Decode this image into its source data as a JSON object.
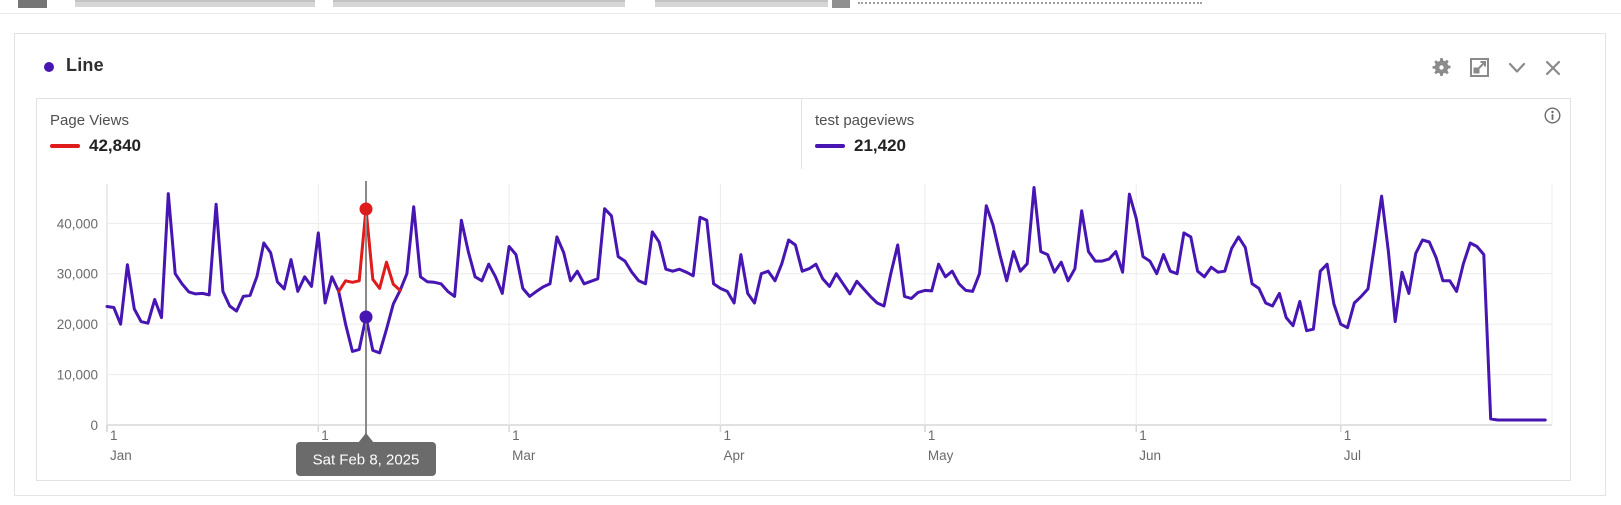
{
  "panel": {
    "title": "Line",
    "accent_color": "#4715b2",
    "toolbar_icon_color": "#8a8a8a",
    "toolbar_icons": [
      "settings-gear",
      "expand",
      "chevron-down",
      "close"
    ]
  },
  "legend": {
    "items": [
      {
        "label": "Page Views",
        "value": "42,840",
        "color": "#df1b1b"
      },
      {
        "label": "test pageviews",
        "value": "21,420",
        "color": "#4715b2"
      }
    ]
  },
  "info_icon": "i",
  "chart_data": {
    "type": "line",
    "x_unit": "day offset from Jan 1, 2025",
    "ylim": [
      0,
      48000
    ],
    "grid": true,
    "y_ticks": [
      {
        "v": 0,
        "label": "0"
      },
      {
        "v": 10000,
        "label": "10,000"
      },
      {
        "v": 20000,
        "label": "20,000"
      },
      {
        "v": 30000,
        "label": "30,000"
      },
      {
        "v": 40000,
        "label": "40,000"
      }
    ],
    "months": [
      {
        "day": 0,
        "tick": "1",
        "label": "Jan"
      },
      {
        "day": 31,
        "tick": "1",
        "label": "Feb"
      },
      {
        "day": 59,
        "tick": "1",
        "label": "Mar"
      },
      {
        "day": 90,
        "tick": "1",
        "label": "Apr"
      },
      {
        "day": 120,
        "tick": "1",
        "label": "May"
      },
      {
        "day": 151,
        "tick": "1",
        "label": "Jun"
      },
      {
        "day": 181,
        "tick": "1",
        "label": "Jul"
      }
    ],
    "right_edge_day": 212,
    "axis_color": "#d7d7d7",
    "grid_color": "#ececec",
    "tick_label_color": "#6b6b6b",
    "series": [
      {
        "name": "test pageviews",
        "color": "#4715b2",
        "start_day": 0,
        "values": [
          23500,
          23300,
          20000,
          31800,
          23000,
          20500,
          20200,
          24900,
          21300,
          45900,
          30000,
          28000,
          26400,
          26000,
          26100,
          25800,
          43800,
          26500,
          23600,
          22600,
          25500,
          25700,
          29500,
          36100,
          34200,
          28400,
          27000,
          32800,
          26500,
          29400,
          27500,
          38100,
          24200,
          29400,
          26500,
          20000,
          14600,
          15000,
          21420,
          14800,
          14300,
          19000,
          24000,
          26700,
          30000,
          43300,
          29400,
          28400,
          28300,
          28000,
          26500,
          25500,
          40600,
          34400,
          29400,
          28600,
          31900,
          29400,
          26100,
          35400,
          33800,
          27100,
          25500,
          26500,
          27400,
          28000,
          37300,
          34200,
          28600,
          30500,
          28000,
          28500,
          29000,
          42900,
          41500,
          33400,
          32500,
          30300,
          28600,
          28000,
          38300,
          36300,
          30900,
          30500,
          30900,
          30300,
          29600,
          41200,
          40600,
          28000,
          27100,
          26500,
          24200,
          33800,
          26100,
          24200,
          30000,
          30500,
          28600,
          32000,
          36700,
          35700,
          30500,
          31000,
          31900,
          29000,
          27500,
          30000,
          28000,
          26000,
          28500,
          27000,
          25500,
          24200,
          23600,
          30000,
          35700,
          25500,
          25100,
          26300,
          26700,
          26600,
          31900,
          29400,
          30500,
          28000,
          26700,
          26500,
          30000,
          43500,
          39600,
          33800,
          28600,
          34400,
          30500,
          32000,
          47100,
          34400,
          33800,
          30300,
          32300,
          28600,
          31000,
          42500,
          34400,
          32500,
          32500,
          32900,
          34400,
          30300,
          45800,
          41000,
          33400,
          32500,
          30000,
          33800,
          30500,
          30000,
          38100,
          37300,
          30500,
          29400,
          31300,
          30300,
          30500,
          35000,
          37300,
          35200,
          28000,
          27100,
          24200,
          23600,
          26100,
          21300,
          19700,
          24500,
          18700,
          19000,
          30500,
          31900,
          24000,
          20000,
          19300,
          24200,
          25500,
          27000,
          36000,
          45400,
          34400,
          20500,
          30300,
          26100,
          34000,
          36700,
          36300,
          33200,
          28600,
          28600,
          26500,
          32000,
          36100,
          35400,
          33800,
          1200,
          1000,
          1000,
          1000,
          1000,
          1000,
          1000,
          1000,
          1000
        ]
      },
      {
        "name": "Page Views",
        "color": "#df1b1b",
        "start_day": 34,
        "values": [
          26500,
          28600,
          28300,
          28600,
          42840,
          28900,
          27100,
          32300,
          27900,
          26700
        ]
      }
    ],
    "hover": {
      "day": 38,
      "date_label": "Sat Feb 8, 2025",
      "line_color": "#8a8a8a",
      "tooltip_bg": "#6b6b6b",
      "tooltip_text_color": "#ffffff",
      "points": [
        {
          "series": "Page Views",
          "value": 42840,
          "color": "#df1b1b"
        },
        {
          "series": "test pageviews",
          "value": 21420,
          "color": "#4715b2"
        }
      ]
    }
  }
}
